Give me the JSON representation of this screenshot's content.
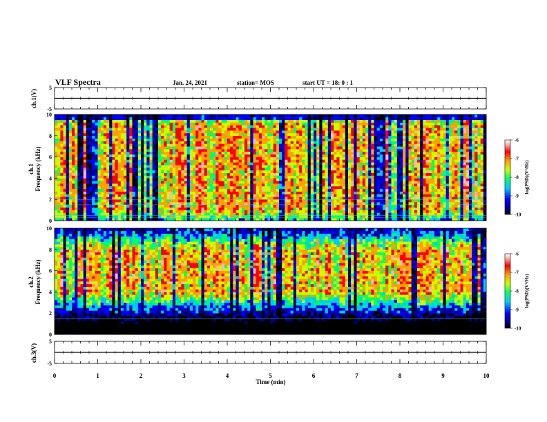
{
  "header": {
    "title": "VLF Spectra",
    "date": "Jan. 24, 2021",
    "station": "station= MOS",
    "start_ut": "start  UT =   18: 0  : 1"
  },
  "colors": {
    "axis": "#000000",
    "trace": "#000000",
    "background": "#ffffff",
    "colormap": [
      "#000000",
      "#00008b",
      "#0000ff",
      "#00c8ff",
      "#00ff64",
      "#c8ff00",
      "#ffa000",
      "#ff0000",
      "#ffb4b4",
      "#ffffff"
    ]
  },
  "chart_data": [
    {
      "type": "line",
      "panel": "ch1_waveform",
      "ylabel": "ch.1(V)",
      "ylim": [
        -5,
        5
      ],
      "y_ticks": [
        "5",
        "-5"
      ],
      "xlim": [
        0,
        10
      ],
      "series": [
        {
          "x": [
            0,
            10
          ],
          "y": [
            0,
            0
          ]
        }
      ]
    },
    {
      "type": "heatmap",
      "panel": "ch1_spectrogram",
      "ylabel": "ch.1\nFrequency (kHz)",
      "ylim": [
        0,
        10
      ],
      "y_ticks": [
        "0",
        "2",
        "4",
        "6",
        "8",
        "10"
      ],
      "xlim": [
        0,
        10
      ],
      "dominant_band_khz": [
        1,
        9
      ],
      "colorbar": {
        "label": "log(PSD)(V²/Hz)",
        "range": [
          -10,
          -6
        ],
        "ticks": [
          "-6",
          "-7",
          "-8",
          "-9",
          "-10"
        ]
      }
    },
    {
      "type": "heatmap",
      "panel": "ch2_spectrogram",
      "ylabel": "ch.2\nFrequency (kHz)",
      "ylim": [
        0,
        10
      ],
      "y_ticks": [
        "0",
        "2",
        "4",
        "6",
        "8",
        "10"
      ],
      "xlim": [
        0,
        10
      ],
      "dominant_band_khz": [
        4,
        8
      ],
      "colorbar": {
        "label": "log(PSD)(V²/Hz)",
        "range": [
          -10,
          -6
        ],
        "ticks": [
          "-6",
          "-7",
          "-8",
          "-9",
          "-10"
        ]
      }
    },
    {
      "type": "line",
      "panel": "ch3_waveform",
      "ylabel": "ch.3(V)",
      "ylim": [
        -5,
        5
      ],
      "y_ticks": [
        "5",
        "-5"
      ],
      "xlim": [
        0,
        10
      ],
      "xlabel": "Time (min)",
      "x_ticks": [
        "0",
        "1",
        "2",
        "3",
        "4",
        "5",
        "6",
        "7",
        "8",
        "9",
        "10"
      ],
      "series": [
        {
          "x": [
            0,
            10
          ],
          "y": [
            0,
            0
          ]
        }
      ]
    }
  ]
}
